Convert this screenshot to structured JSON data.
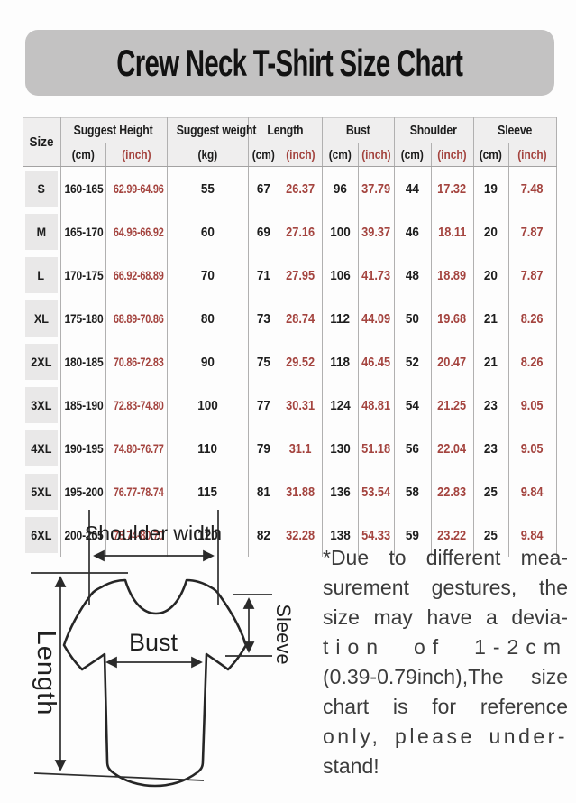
{
  "title": "Crew Neck T-Shirt Size Chart",
  "table": {
    "corner_label": "Size",
    "groups": [
      {
        "label": "Suggest Height",
        "units": [
          "(cm)",
          "(inch)"
        ]
      },
      {
        "label": "Suggest weight",
        "units": [
          "(kg)"
        ]
      },
      {
        "label": "Length",
        "units": [
          "(cm)",
          "(inch)"
        ]
      },
      {
        "label": "Bust",
        "units": [
          "(cm)",
          "(inch)"
        ]
      },
      {
        "label": "Shoulder",
        "units": [
          "(cm)",
          "(inch)"
        ]
      },
      {
        "label": "Sleeve",
        "units": [
          "(cm)",
          "(inch)"
        ]
      }
    ],
    "red_columns": [
      2,
      5,
      7,
      9,
      11
    ],
    "rows": [
      [
        "S",
        "160-165",
        "62.99-64.96",
        "55",
        "67",
        "26.37",
        "96",
        "37.79",
        "44",
        "17.32",
        "19",
        "7.48"
      ],
      [
        "M",
        "165-170",
        "64.96-66.92",
        "60",
        "69",
        "27.16",
        "100",
        "39.37",
        "46",
        "18.11",
        "20",
        "7.87"
      ],
      [
        "L",
        "170-175",
        "66.92-68.89",
        "70",
        "71",
        "27.95",
        "106",
        "41.73",
        "48",
        "18.89",
        "20",
        "7.87"
      ],
      [
        "XL",
        "175-180",
        "68.89-70.86",
        "80",
        "73",
        "28.74",
        "112",
        "44.09",
        "50",
        "19.68",
        "21",
        "8.26"
      ],
      [
        "2XL",
        "180-185",
        "70.86-72.83",
        "90",
        "75",
        "29.52",
        "118",
        "46.45",
        "52",
        "20.47",
        "21",
        "8.26"
      ],
      [
        "3XL",
        "185-190",
        "72.83-74.80",
        "100",
        "77",
        "30.31",
        "124",
        "48.81",
        "54",
        "21.25",
        "23",
        "9.05"
      ],
      [
        "4XL",
        "190-195",
        "74.80-76.77",
        "110",
        "79",
        "31.1",
        "130",
        "51.18",
        "56",
        "22.04",
        "23",
        "9.05"
      ],
      [
        "5XL",
        "195-200",
        "76.77-78.74",
        "115",
        "81",
        "31.88",
        "136",
        "53.54",
        "58",
        "22.83",
        "25",
        "9.84"
      ],
      [
        "6XL",
        "200-205",
        "78.74-80.70",
        "120",
        "82",
        "32.28",
        "138",
        "54.33",
        "59",
        "23.22",
        "25",
        "9.84"
      ]
    ]
  },
  "diagram": {
    "labels": {
      "shoulder_width": "Shoulder width",
      "length": "Length",
      "bust": "Bust",
      "sleeve": "Sleeve"
    }
  },
  "note": {
    "lines": [
      "*Due to different mea-",
      "surement gestures, the",
      "size may have a devia-",
      "tion of 1-2cm",
      "(0.39-0.79inch),The size",
      "chart is for reference",
      "only, please under-",
      "stand!"
    ]
  },
  "colors": {
    "inch_red": "#a4443f",
    "banner_gray": "#c3c2c2"
  }
}
